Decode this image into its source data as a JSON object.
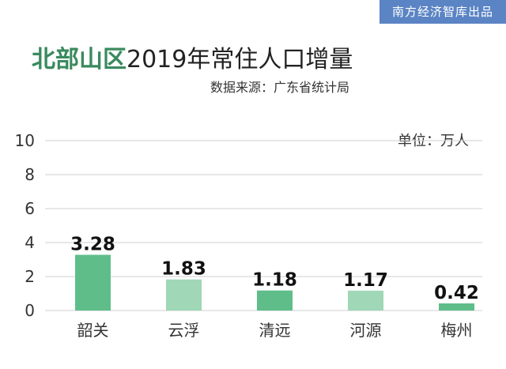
{
  "header": {
    "brand": "南方经济智库出品",
    "title_highlight": "北部山区",
    "title_rest": "2019年常住人口增量",
    "source": "数据来源：广东省统计局",
    "unit": "单位：万人"
  },
  "colors": {
    "bar_dark": "#5fbd8a",
    "bar_light": "#9fd7b7",
    "grid": "#cfcfcf",
    "title_highlight": "#3a8a5e",
    "brand_bg": "#5b84c4"
  },
  "chart_data": {
    "type": "bar",
    "categories": [
      "韶关",
      "云浮",
      "清远",
      "河源",
      "梅州"
    ],
    "values": [
      3.28,
      1.83,
      1.18,
      1.17,
      0.42
    ],
    "value_labels": [
      "3.28",
      "1.83",
      "1.18",
      "1.17",
      "0.42"
    ],
    "title": "北部山区2019年常住人口增量",
    "ylim": [
      0,
      10
    ],
    "yticks": [
      0,
      2,
      4,
      6,
      8,
      10
    ],
    "grid": true
  }
}
